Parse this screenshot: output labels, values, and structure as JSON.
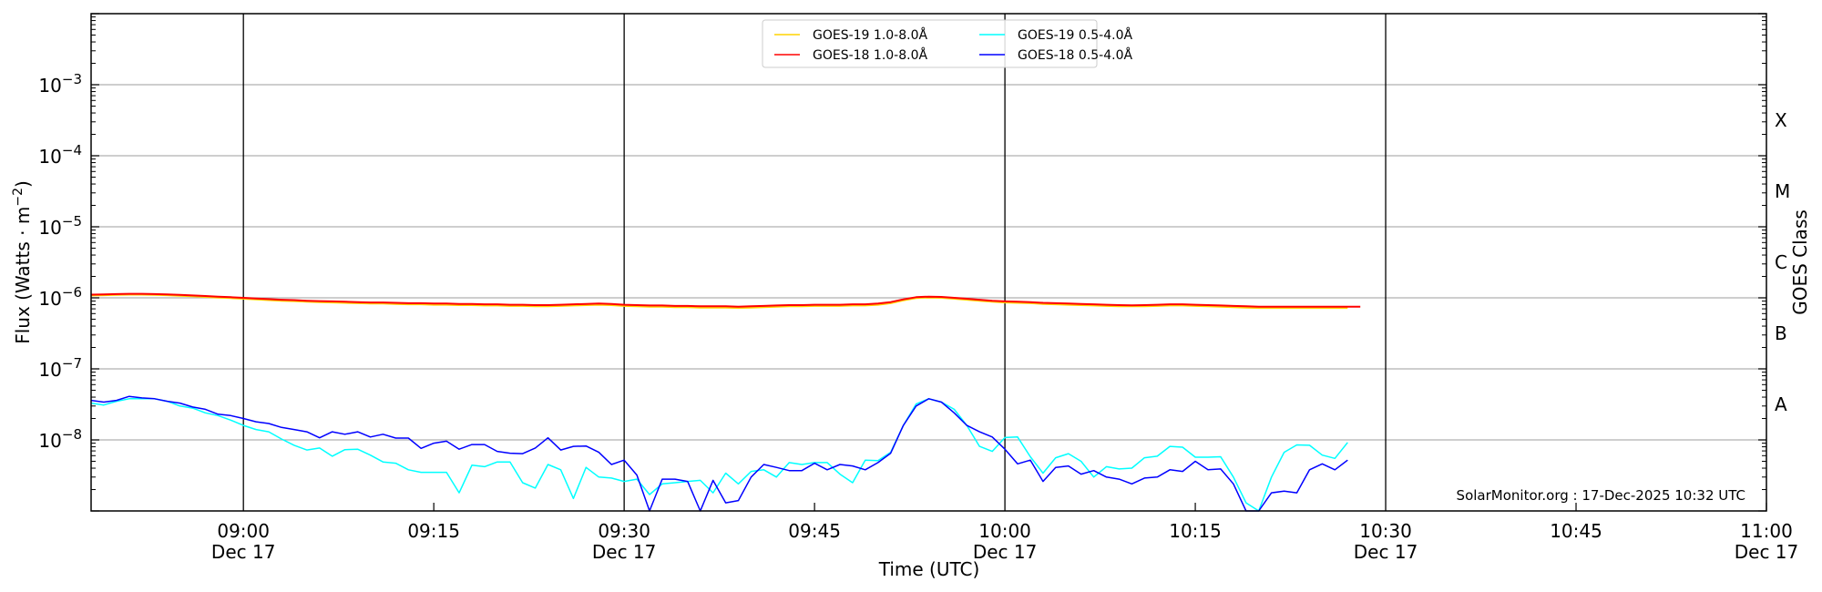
{
  "chart_data": {
    "type": "line",
    "title": "",
    "xlabel": "Time (UTC)",
    "ylabel": "Flux (Watts · m",
    "ylabel_sup": "−2",
    "ylabel_close": ")",
    "right_ylabel": "GOES Class",
    "yscale": "log",
    "ylim": [
      1e-09,
      0.01
    ],
    "xlim_minutes_after_0848": [
      0,
      132
    ],
    "x_start": "08:48",
    "x_step_minutes": 1,
    "x_ticks": [
      {
        "minute": 12,
        "label": "09:00",
        "date": "Dec 17",
        "major_line": true
      },
      {
        "minute": 27,
        "label": "09:15",
        "date": "",
        "major_line": false
      },
      {
        "minute": 42,
        "label": "09:30",
        "date": "Dec 17",
        "major_line": true
      },
      {
        "minute": 57,
        "label": "09:45",
        "date": "",
        "major_line": false
      },
      {
        "minute": 72,
        "label": "10:00",
        "date": "Dec 17",
        "major_line": true
      },
      {
        "minute": 87,
        "label": "10:15",
        "date": "",
        "major_line": false
      },
      {
        "minute": 102,
        "label": "10:30",
        "date": "Dec 17",
        "major_line": true
      },
      {
        "minute": 117,
        "label": "10:45",
        "date": "",
        "major_line": false
      },
      {
        "minute": 132,
        "label": "11:00",
        "date": "Dec 17",
        "major_line": false
      }
    ],
    "y_ticks": [
      {
        "exp": -3,
        "base": "10",
        "sup": "−3"
      },
      {
        "exp": -4,
        "base": "10",
        "sup": "−4"
      },
      {
        "exp": -5,
        "base": "10",
        "sup": "−5"
      },
      {
        "exp": -6,
        "base": "10",
        "sup": "−6"
      },
      {
        "exp": -7,
        "base": "10",
        "sup": "−7"
      },
      {
        "exp": -8,
        "base": "10",
        "sup": "−8"
      }
    ],
    "goes_classes": [
      {
        "label": "X",
        "exp": -3.5
      },
      {
        "label": "M",
        "exp": -4.5
      },
      {
        "label": "C",
        "exp": -5.5
      },
      {
        "label": "B",
        "exp": -6.5
      },
      {
        "label": "A",
        "exp": -7.5
      }
    ],
    "grid": true,
    "legend_position": "top-center",
    "annotation": "SolarMonitor.org : 17-Dec-2025 10:32 UTC",
    "series": [
      {
        "name": "GOES-19 1.0-8.0Å",
        "color": "#ffd400",
        "width": 2,
        "values": [
          1.08e-06,
          1.09e-06,
          1.1e-06,
          1.11e-06,
          1.11e-06,
          1.1e-06,
          1.09e-06,
          1.07e-06,
          1.05e-06,
          1.03e-06,
          1.01e-06,
          9.9e-07,
          9.7e-07,
          9.5e-07,
          9.3e-07,
          9.1e-07,
          9e-07,
          8.8e-07,
          8.7e-07,
          8.6e-07,
          8.5e-07,
          8.4e-07,
          8.3e-07,
          8.3e-07,
          8.2e-07,
          8.1e-07,
          8.1e-07,
          8e-07,
          8e-07,
          7.9e-07,
          7.9e-07,
          7.8e-07,
          7.8e-07,
          7.7e-07,
          7.7e-07,
          7.6e-07,
          7.6e-07,
          7.7e-07,
          7.8e-07,
          7.9e-07,
          8e-07,
          7.9e-07,
          7.7e-07,
          7.6e-07,
          7.5e-07,
          7.5e-07,
          7.4e-07,
          7.4e-07,
          7.3e-07,
          7.3e-07,
          7.3e-07,
          7.2e-07,
          7.3e-07,
          7.4e-07,
          7.5e-07,
          7.6e-07,
          7.6e-07,
          7.7e-07,
          7.7e-07,
          7.7e-07,
          7.8e-07,
          7.8e-07,
          8e-07,
          8.4e-07,
          9.2e-07,
          9.9e-07,
          1.01e-06,
          1e-06,
          9.7e-07,
          9.4e-07,
          9.1e-07,
          8.8e-07,
          8.6e-07,
          8.5e-07,
          8.4e-07,
          8.2e-07,
          8.1e-07,
          8e-07,
          7.9e-07,
          7.8e-07,
          7.7e-07,
          7.6e-07,
          7.6e-07,
          7.6e-07,
          7.7e-07,
          7.8e-07,
          7.8e-07,
          7.7e-07,
          7.6e-07,
          7.5e-07,
          7.4e-07,
          7.3e-07,
          7.2e-07,
          7.2e-07,
          7.2e-07,
          7.2e-07,
          7.2e-07,
          7.2e-07,
          7.2e-07,
          7.2e-07
        ]
      },
      {
        "name": "GOES-18 1.0-8.0Å",
        "color": "#ff0000",
        "width": 2,
        "values": [
          1.11e-06,
          1.12e-06,
          1.13e-06,
          1.14e-06,
          1.14e-06,
          1.13e-06,
          1.12e-06,
          1.1e-06,
          1.08e-06,
          1.06e-06,
          1.04e-06,
          1.02e-06,
          1e-06,
          9.8e-07,
          9.6e-07,
          9.4e-07,
          9.3e-07,
          9.1e-07,
          9e-07,
          8.9e-07,
          8.8e-07,
          8.7e-07,
          8.6e-07,
          8.6e-07,
          8.5e-07,
          8.4e-07,
          8.4e-07,
          8.3e-07,
          8.3e-07,
          8.2e-07,
          8.2e-07,
          8.1e-07,
          8.1e-07,
          8e-07,
          8e-07,
          7.9e-07,
          7.9e-07,
          8e-07,
          8.1e-07,
          8.2e-07,
          8.3e-07,
          8.2e-07,
          8e-07,
          7.9e-07,
          7.8e-07,
          7.8e-07,
          7.7e-07,
          7.7e-07,
          7.6e-07,
          7.6e-07,
          7.6e-07,
          7.5e-07,
          7.6e-07,
          7.7e-07,
          7.8e-07,
          7.9e-07,
          7.9e-07,
          8e-07,
          8e-07,
          8e-07,
          8.1e-07,
          8.1e-07,
          8.3e-07,
          8.7e-07,
          9.5e-07,
          1.02e-06,
          1.04e-06,
          1.03e-06,
          1e-06,
          9.7e-07,
          9.4e-07,
          9.1e-07,
          8.9e-07,
          8.8e-07,
          8.7e-07,
          8.5e-07,
          8.4e-07,
          8.3e-07,
          8.2e-07,
          8.1e-07,
          8e-07,
          7.9e-07,
          7.85e-07,
          7.9e-07,
          8e-07,
          8.1e-07,
          8.1e-07,
          8e-07,
          7.9e-07,
          7.8e-07,
          7.7e-07,
          7.6e-07,
          7.5e-07,
          7.5e-07,
          7.5e-07,
          7.5e-07,
          7.5e-07,
          7.5e-07,
          7.5e-07,
          7.5e-07,
          7.5e-07
        ]
      },
      {
        "name": "GOES-19 0.5-4.0Å",
        "color": "#00ffff",
        "width": 1.5,
        "values": [
          3.3e-08,
          3.1e-08,
          3.5e-08,
          3.8e-08,
          3.8e-08,
          3.8e-08,
          3.5e-08,
          3e-08,
          2.8e-08,
          2.4e-08,
          2.2e-08,
          1.9e-08,
          1.6e-08,
          1.4e-08,
          1.3e-08,
          1.03e-08,
          8.4e-09,
          7.2e-09,
          7.7e-09,
          5.9e-09,
          7.3e-09,
          7.4e-09,
          6.1e-09,
          4.9e-09,
          4.7e-09,
          3.8e-09,
          3.5e-09,
          3.5e-09,
          3.5e-09,
          1.8e-09,
          4.4e-09,
          4.2e-09,
          4.9e-09,
          4.9e-09,
          2.5e-09,
          2.1e-09,
          4.5e-09,
          3.8e-09,
          1.5e-09,
          4.1e-09,
          3e-09,
          2.9e-09,
          2.6e-09,
          2.8e-09,
          1.7e-09,
          2.4e-09,
          2.5e-09,
          2.6e-09,
          2.7e-09,
          1.8e-09,
          3.4e-09,
          2.4e-09,
          3.6e-09,
          3.8e-09,
          3e-09,
          4.8e-09,
          4.5e-09,
          4.8e-09,
          4.8e-09,
          3.3e-09,
          2.5e-09,
          5.2e-09,
          5.1e-09,
          6.7e-09,
          1.6e-08,
          3.2e-08,
          3.8e-08,
          3.4e-08,
          2.7e-08,
          1.6e-08,
          8.1e-09,
          6.9e-09,
          1.08e-08,
          1.1e-08,
          5.8e-09,
          3.4e-09,
          5.6e-09,
          6.4e-09,
          5e-09,
          3e-09,
          4.2e-09,
          3.9e-09,
          4e-09,
          5.6e-09,
          5.9e-09,
          8.1e-09,
          7.9e-09,
          5.7e-09,
          5.7e-09,
          5.8e-09,
          3e-09,
          1.3e-09,
          1e-09,
          3e-09,
          6.7e-09,
          8.5e-09,
          8.4e-09,
          6.1e-09,
          5.5e-09,
          9.2e-09
        ]
      },
      {
        "name": "GOES-18 0.5-4.0Å",
        "color": "#0000ff",
        "width": 1.5,
        "values": [
          3.6e-08,
          3.4e-08,
          3.6e-08,
          4.1e-08,
          3.9e-08,
          3.8e-08,
          3.5e-08,
          3.3e-08,
          2.9e-08,
          2.7e-08,
          2.3e-08,
          2.2e-08,
          2e-08,
          1.8e-08,
          1.7e-08,
          1.5e-08,
          1.4e-08,
          1.3e-08,
          1.07e-08,
          1.3e-08,
          1.2e-08,
          1.3e-08,
          1.1e-08,
          1.2e-08,
          1.06e-08,
          1.06e-08,
          7.6e-09,
          9e-09,
          9.6e-09,
          7.4e-09,
          8.6e-09,
          8.6e-09,
          6.9e-09,
          6.5e-09,
          6.4e-09,
          7.7e-09,
          1.07e-08,
          7.2e-09,
          8.1e-09,
          8.2e-09,
          6.7e-09,
          4.5e-09,
          5.2e-09,
          3.2e-09,
          1e-09,
          2.8e-09,
          2.8e-09,
          2.6e-09,
          1e-09,
          2.7e-09,
          1.3e-09,
          1.4e-09,
          3e-09,
          4.5e-09,
          4.1e-09,
          3.7e-09,
          3.7e-09,
          4.7e-09,
          3.8e-09,
          4.5e-09,
          4.3e-09,
          3.8e-09,
          4.8e-09,
          6.5e-09,
          1.6e-08,
          3e-08,
          3.8e-08,
          3.4e-08,
          2.4e-08,
          1.6e-08,
          1.3e-08,
          1.1e-08,
          7.4e-09,
          4.6e-09,
          5.2e-09,
          2.6e-09,
          4.1e-09,
          4.3e-09,
          3.3e-09,
          3.7e-09,
          3e-09,
          2.8e-09,
          2.4e-09,
          2.9e-09,
          3e-09,
          3.8e-09,
          3.6e-09,
          5e-09,
          3.8e-09,
          3.9e-09,
          2.4e-09,
          1e-09,
          1e-09,
          1.8e-09,
          1.9e-09,
          1.8e-09,
          3.8e-09,
          4.6e-09,
          3.8e-09,
          5.2e-09
        ]
      }
    ]
  }
}
